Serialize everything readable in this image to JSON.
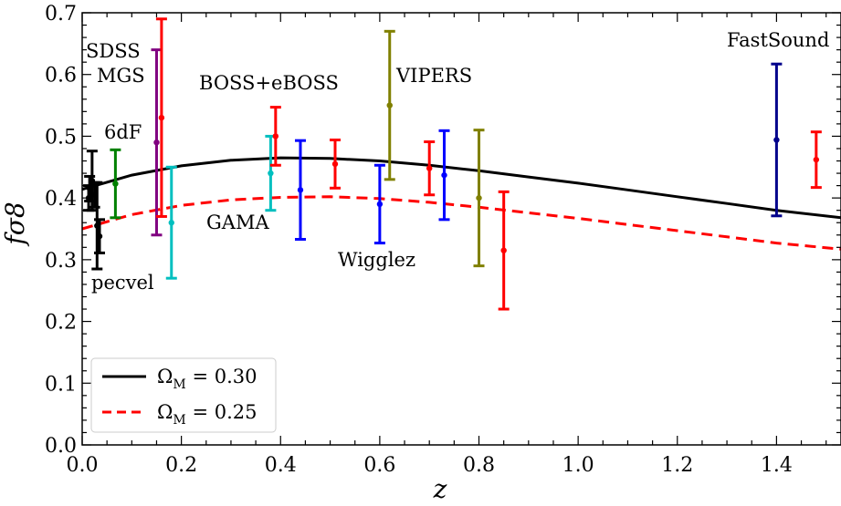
{
  "chart_data": {
    "type": "scatter",
    "xlabel": "z",
    "ylabel": "fσ8",
    "xlim": [
      0.0,
      1.53
    ],
    "ylim": [
      0.0,
      0.7
    ],
    "x_ticks": [
      "0.0",
      "0.2",
      "0.4",
      "0.6",
      "0.8",
      "1.0",
      "1.2",
      "1.4"
    ],
    "y_ticks": [
      "0.0",
      "0.1",
      "0.2",
      "0.3",
      "0.4",
      "0.5",
      "0.6",
      "0.7"
    ],
    "legend_position": "lower-left",
    "grid": false,
    "models": [
      {
        "label_main": "Ω",
        "label_sub": "M",
        "label_value": " = 0.30",
        "style": "solid",
        "color": "#000000",
        "z": [
          0.0,
          0.1,
          0.2,
          0.3,
          0.4,
          0.5,
          0.6,
          0.7,
          0.8,
          0.9,
          1.0,
          1.1,
          1.2,
          1.3,
          1.4,
          1.53
        ],
        "y": [
          0.414,
          0.437,
          0.452,
          0.461,
          0.465,
          0.464,
          0.46,
          0.453,
          0.444,
          0.434,
          0.424,
          0.413,
          0.402,
          0.391,
          0.38,
          0.368
        ]
      },
      {
        "label_main": "Ω",
        "label_sub": "M",
        "label_value": " = 0.25",
        "style": "dashed",
        "color": "#ff0000",
        "z": [
          0.0,
          0.1,
          0.2,
          0.3,
          0.4,
          0.5,
          0.6,
          0.7,
          0.8,
          0.9,
          1.0,
          1.1,
          1.2,
          1.3,
          1.4,
          1.53
        ],
        "y": [
          0.35,
          0.373,
          0.388,
          0.397,
          0.401,
          0.402,
          0.399,
          0.393,
          0.385,
          0.376,
          0.367,
          0.357,
          0.347,
          0.337,
          0.327,
          0.317
        ]
      }
    ],
    "surveys": [
      {
        "name": "pecvel",
        "label_lines": [
          "pecvel"
        ],
        "color": "#000000",
        "points": [
          {
            "z": 0.013,
            "y": 0.4,
            "err": 0.02
          },
          {
            "z": 0.015,
            "y": 0.415,
            "err": 0.02
          },
          {
            "z": 0.02,
            "y": 0.428,
            "err": 0.048
          },
          {
            "z": 0.025,
            "y": 0.405,
            "err": 0.02
          },
          {
            "z": 0.03,
            "y": 0.355,
            "err": 0.07
          },
          {
            "z": 0.035,
            "y": 0.338,
            "err": 0.027
          }
        ]
      },
      {
        "name": "6dF",
        "label_lines": [
          "6dF"
        ],
        "color": "#008000",
        "points": [
          {
            "z": 0.067,
            "y": 0.423,
            "err": 0.055
          }
        ]
      },
      {
        "name": "SDSS MGS",
        "label_lines": [
          "SDSS",
          "MGS"
        ],
        "color": "#800080",
        "points": [
          {
            "z": 0.15,
            "y": 0.49,
            "err": 0.15
          }
        ]
      },
      {
        "name": "GAMA",
        "label_lines": [
          "GAMA"
        ],
        "color": "#00bfbf",
        "points": [
          {
            "z": 0.18,
            "y": 0.36,
            "err": 0.09
          },
          {
            "z": 0.38,
            "y": 0.44,
            "err": 0.06
          }
        ]
      },
      {
        "name": "BOSS+eBOSS",
        "label_lines": [
          "BOSS+eBOSS"
        ],
        "color": "#ff0000",
        "points": [
          {
            "z": 0.16,
            "y": 0.53,
            "err": 0.16
          },
          {
            "z": 0.39,
            "y": 0.5,
            "err": 0.047
          },
          {
            "z": 0.51,
            "y": 0.455,
            "err": 0.039
          },
          {
            "z": 0.7,
            "y": 0.448,
            "err": 0.043
          },
          {
            "z": 0.85,
            "y": 0.315,
            "err": 0.095
          },
          {
            "z": 1.48,
            "y": 0.462,
            "err": 0.045
          }
        ]
      },
      {
        "name": "Wigglez",
        "label_lines": [
          "Wigglez"
        ],
        "color": "#0000ff",
        "points": [
          {
            "z": 0.44,
            "y": 0.413,
            "err": 0.08
          },
          {
            "z": 0.6,
            "y": 0.39,
            "err": 0.063
          },
          {
            "z": 0.73,
            "y": 0.437,
            "err": 0.072
          }
        ]
      },
      {
        "name": "VIPERS",
        "label_lines": [
          "VIPERS"
        ],
        "color": "#808000",
        "points": [
          {
            "z": 0.62,
            "y": 0.55,
            "err": 0.12
          },
          {
            "z": 0.8,
            "y": 0.4,
            "err": 0.11
          }
        ]
      },
      {
        "name": "FastSound",
        "label_lines": [
          "FastSound"
        ],
        "color": "#00008b",
        "points": [
          {
            "z": 1.4,
            "y": 0.494,
            "err": 0.123
          }
        ]
      }
    ]
  }
}
